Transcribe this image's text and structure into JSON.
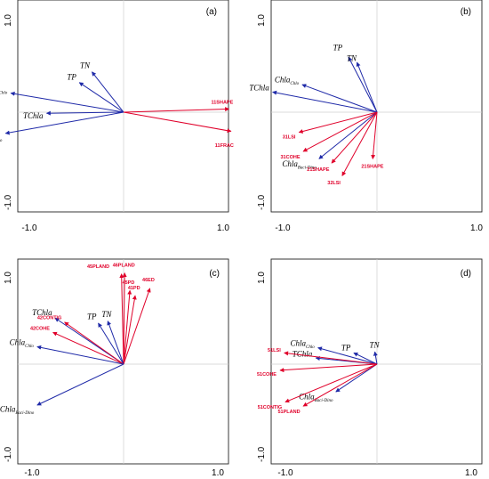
{
  "colors": {
    "env": "#1f2aa8",
    "land": "#e0002a"
  },
  "chart_data": [
    {
      "type": "scatter",
      "panel_label": "(a)",
      "xlim": [
        -1.0,
        1.0
      ],
      "ylim": [
        -1.0,
        1.0
      ],
      "x_tick_labels": [
        "-1.0",
        "1.0"
      ],
      "y_tick_labels": [
        "1.0",
        "-1.0"
      ],
      "vectors": [
        {
          "label": "TN",
          "sub": "",
          "group": "env",
          "x": -0.3,
          "y": 0.38
        },
        {
          "label": "TP",
          "sub": "",
          "group": "env",
          "x": -0.42,
          "y": 0.28
        },
        {
          "label": "Chla",
          "sub": "Chlo",
          "group": "env",
          "x": -1.07,
          "y": 0.18
        },
        {
          "label": "TChla",
          "sub": "",
          "group": "env",
          "x": -0.73,
          "y": -0.01
        },
        {
          "label": "Chla",
          "sub": "Baci-Dino",
          "group": "env",
          "x": -1.12,
          "y": -0.2
        },
        {
          "label": "11SHAPE",
          "sub": "",
          "group": "land",
          "x": 1.0,
          "y": 0.03
        },
        {
          "label": "11FRAC",
          "sub": "",
          "group": "land",
          "x": 1.02,
          "y": -0.18
        }
      ]
    },
    {
      "type": "scatter",
      "panel_label": "(b)",
      "xlim": [
        -1.0,
        1.0
      ],
      "ylim": [
        -1.0,
        1.0
      ],
      "x_tick_labels": [
        "-1.0",
        "1.0"
      ],
      "y_tick_labels": [
        "1.0",
        "-1.0"
      ],
      "vectors": [
        {
          "label": "TP",
          "sub": "",
          "group": "env",
          "x": -0.27,
          "y": 0.52
        },
        {
          "label": "TN",
          "sub": "",
          "group": "env",
          "x": -0.19,
          "y": 0.47
        },
        {
          "label": "Chla",
          "sub": "Chlo",
          "group": "env",
          "x": -0.71,
          "y": 0.26
        },
        {
          "label": "TChla",
          "sub": "",
          "group": "env",
          "x": -0.99,
          "y": 0.19
        },
        {
          "label": "31LSI",
          "sub": "",
          "group": "land",
          "x": -0.74,
          "y": -0.19
        },
        {
          "label": "31COHE",
          "sub": "",
          "group": "land",
          "x": -0.7,
          "y": -0.37
        },
        {
          "label": "Chla",
          "sub": "Baci-Dino",
          "group": "env",
          "x": -0.55,
          "y": -0.44
        },
        {
          "label": "21SHAPE",
          "sub": "",
          "group": "land",
          "x": -0.43,
          "y": -0.48
        },
        {
          "label": "32LSI",
          "sub": "",
          "group": "land",
          "x": -0.33,
          "y": -0.6
        },
        {
          "label": "21SHAPE",
          "sub": "",
          "group": "land",
          "x": -0.04,
          "y": -0.44
        }
      ]
    },
    {
      "type": "scatter",
      "panel_label": "(c)",
      "xlim": [
        -1.0,
        1.0
      ],
      "ylim": [
        -1.0,
        1.0
      ],
      "x_tick_labels": [
        "-1.0",
        "1.0"
      ],
      "y_tick_labels": [
        "1.0",
        "-1.0"
      ],
      "vectors": [
        {
          "label": "45PLAND",
          "sub": "",
          "group": "land",
          "x": -0.02,
          "y": 0.88
        },
        {
          "label": "46PLAND",
          "sub": "",
          "group": "land",
          "x": 0.01,
          "y": 0.89
        },
        {
          "label": "45PD",
          "sub": "",
          "group": "land",
          "x": 0.06,
          "y": 0.72
        },
        {
          "label": "41PD",
          "sub": "",
          "group": "land",
          "x": 0.11,
          "y": 0.67
        },
        {
          "label": "46ED",
          "sub": "",
          "group": "land",
          "x": 0.25,
          "y": 0.74
        },
        {
          "label": "TP",
          "sub": "",
          "group": "env",
          "x": -0.24,
          "y": 0.4
        },
        {
          "label": "TN",
          "sub": "",
          "group": "env",
          "x": -0.15,
          "y": 0.42
        },
        {
          "label": "TChla",
          "sub": "",
          "group": "env",
          "x": -0.65,
          "y": 0.45
        },
        {
          "label": "42CONTIG",
          "sub": "",
          "group": "land",
          "x": -0.56,
          "y": 0.41
        },
        {
          "label": "42COHE",
          "sub": "",
          "group": "land",
          "x": -0.67,
          "y": 0.31
        },
        {
          "label": "Chla",
          "sub": "Chlo",
          "group": "env",
          "x": -0.82,
          "y": 0.17
        },
        {
          "label": "Chla",
          "sub": "Baci-Dino",
          "group": "env",
          "x": -0.82,
          "y": -0.4
        }
      ]
    },
    {
      "type": "scatter",
      "panel_label": "(d)",
      "xlim": [
        -1.0,
        1.0
      ],
      "ylim": [
        -1.0,
        1.0
      ],
      "x_tick_labels": [
        "-1.0",
        "1.0"
      ],
      "y_tick_labels": [
        "1.0",
        "-1.0"
      ],
      "vectors": [
        {
          "label": "TN",
          "sub": "",
          "group": "env",
          "x": -0.02,
          "y": 0.12
        },
        {
          "label": "TP",
          "sub": "",
          "group": "env",
          "x": -0.22,
          "y": 0.11
        },
        {
          "label": "Chla",
          "sub": "Chlo",
          "group": "env",
          "x": -0.56,
          "y": 0.16
        },
        {
          "label": "TChla",
          "sub": "",
          "group": "env",
          "x": -0.58,
          "y": 0.06
        },
        {
          "label": "51LSI",
          "sub": "",
          "group": "land",
          "x": -0.88,
          "y": 0.11
        },
        {
          "label": "51COHE",
          "sub": "",
          "group": "land",
          "x": -0.92,
          "y": -0.06
        },
        {
          "label": "Chla",
          "sub": "Baci-Dino",
          "group": "env",
          "x": -0.39,
          "y": -0.27
        },
        {
          "label": "51CONTIG",
          "sub": "",
          "group": "land",
          "x": -0.87,
          "y": -0.37
        },
        {
          "label": "51PLAND",
          "sub": "",
          "group": "land",
          "x": -0.7,
          "y": -0.41
        }
      ]
    }
  ]
}
